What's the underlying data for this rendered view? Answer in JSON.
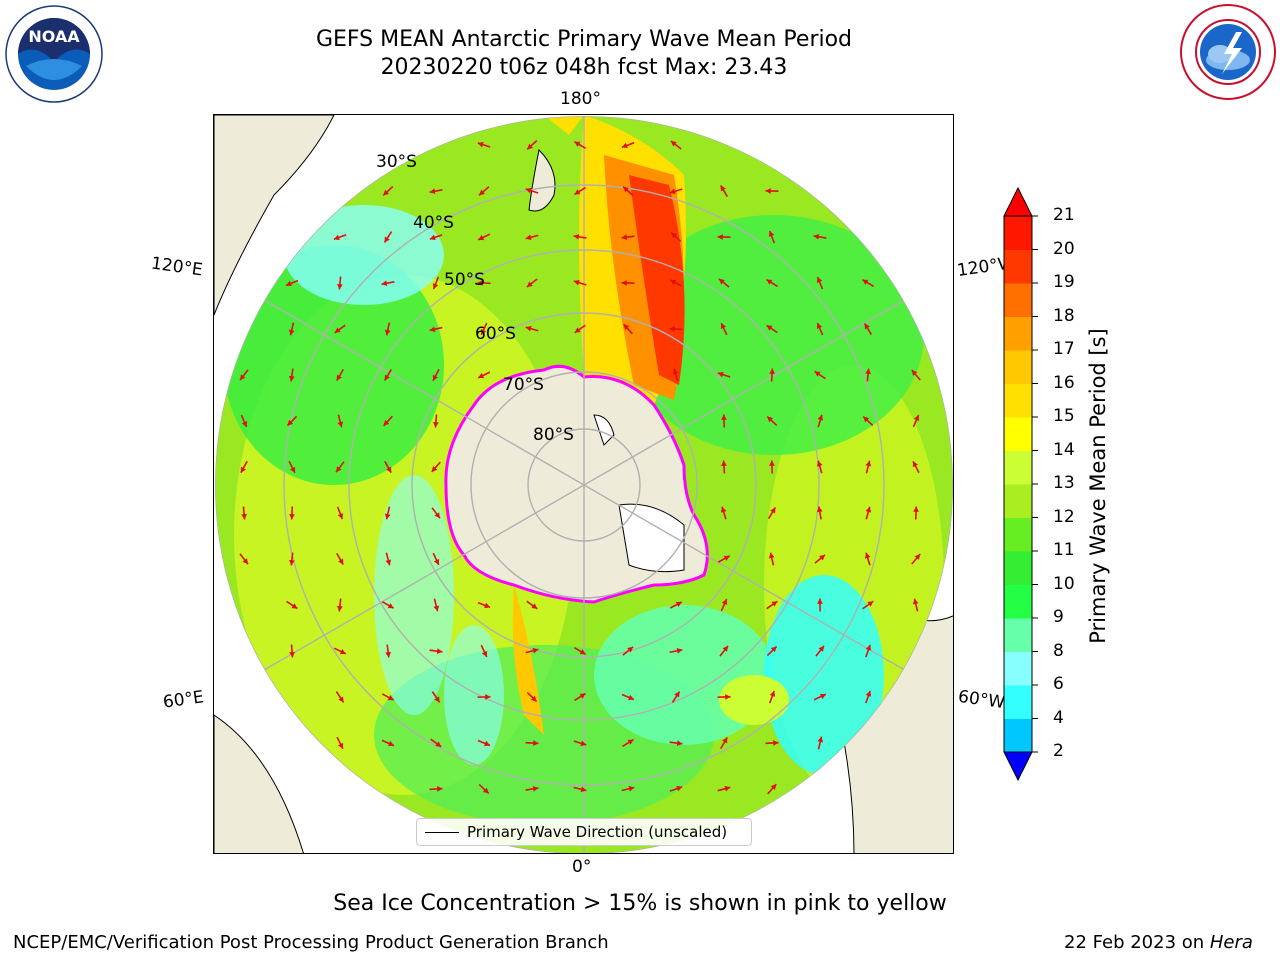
{
  "title": {
    "line1": "GEFS MEAN Antarctic Primary Wave Mean Period",
    "line2": "20230220 t06z 048h fcst   Max: 23.43"
  },
  "logos": {
    "noara_text": "NOAA",
    "noaa_ring": "NATIONAL OCEANIC AND ATMOSPHERIC ADMINISTRATION · U.S. DEPARTMENT OF COMMERCE",
    "nws_ring": "NATIONAL WEATHER SERVICE"
  },
  "map": {
    "projection": "south polar stereographic",
    "longitude_labels": {
      "top": "180°",
      "bottom": "0°",
      "upper_left": "120°E",
      "upper_right": "120°W",
      "lower_left": "60°E",
      "lower_right": "60°W"
    },
    "latitude_labels": [
      "30°S",
      "40°S",
      "50°S",
      "60°S",
      "70°S",
      "80°S"
    ],
    "legend": "Primary Wave Direction (unscaled)",
    "colors": {
      "land": "#eeecd9",
      "arrows": "#e01010",
      "sea_ice_edge": "#ff00ff",
      "grid": "#b0b0b0"
    }
  },
  "colorbar": {
    "label": "Primary Wave Mean Period [s]",
    "ticks": [
      "2",
      "4",
      "6",
      "8",
      "9",
      "10",
      "11",
      "12",
      "13",
      "14",
      "15",
      "16",
      "17",
      "18",
      "19",
      "20",
      "21"
    ],
    "colors": [
      "#0050ff",
      "#00c8ff",
      "#33ffff",
      "#88ffff",
      "#66ffaa",
      "#22ff44",
      "#33ee33",
      "#66ee22",
      "#aaee22",
      "#ccff33",
      "#ffff00",
      "#ffe000",
      "#ffc800",
      "#ffa000",
      "#ff7000",
      "#ff3800",
      "#ff1800"
    ],
    "under_color": "#0000ff",
    "over_color": "#ff0000"
  },
  "note": "Sea Ice Concentration > 15% is shown in pink to yellow",
  "footer": {
    "left": "NCEP/EMC/Verification Post Processing Product Generation Branch",
    "right_prefix": "22 Feb 2023 on ",
    "right_host": "Hera"
  }
}
